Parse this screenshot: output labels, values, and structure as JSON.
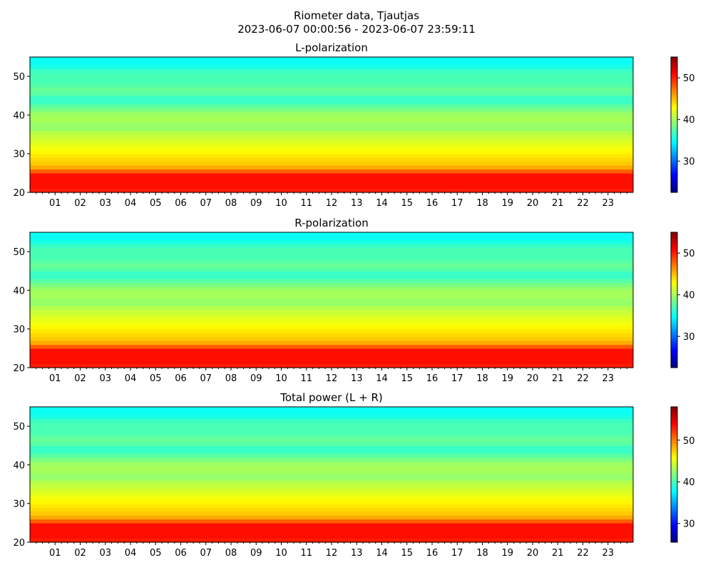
{
  "figure": {
    "title_line1": "Riometer data, Tjautjas",
    "title_line2": "2023-06-07 00:00:56 - 2023-06-07 23:59:11"
  },
  "colormap": {
    "name": "jet",
    "stops": [
      "#00007f",
      "#0000ff",
      "#007fff",
      "#00ffff",
      "#7fff7f",
      "#ffff00",
      "#ff7f00",
      "#ff0000",
      "#7f0000"
    ]
  },
  "chart_data": [
    {
      "type": "heatmap",
      "title": "L-polarization",
      "x_tick_labels": [
        "01",
        "02",
        "03",
        "04",
        "05",
        "06",
        "07",
        "08",
        "09",
        "10",
        "11",
        "12",
        "13",
        "14",
        "15",
        "16",
        "17",
        "18",
        "19",
        "20",
        "21",
        "22",
        "23"
      ],
      "x_range_hours": [
        0,
        24
      ],
      "ylim": [
        20,
        55
      ],
      "y_ticks": [
        20,
        30,
        40,
        50
      ],
      "colorbar": {
        "range": [
          22.5,
          55
        ],
        "ticks": [
          30,
          40,
          50
        ]
      },
      "row_profile": [
        {
          "y": 20,
          "v": 50
        },
        {
          "y": 21,
          "v": 50
        },
        {
          "y": 22,
          "v": 51
        },
        {
          "y": 23,
          "v": 50
        },
        {
          "y": 24,
          "v": 51
        },
        {
          "y": 25,
          "v": 50
        },
        {
          "y": 26,
          "v": 46
        },
        {
          "y": 27,
          "v": 45
        },
        {
          "y": 28,
          "v": 44
        },
        {
          "y": 29,
          "v": 44
        },
        {
          "y": 30,
          "v": 43
        },
        {
          "y": 31,
          "v": 43
        },
        {
          "y": 32,
          "v": 42
        },
        {
          "y": 33,
          "v": 42
        },
        {
          "y": 34,
          "v": 41
        },
        {
          "y": 35,
          "v": 41
        },
        {
          "y": 36,
          "v": 40
        },
        {
          "y": 37,
          "v": 39
        },
        {
          "y": 38,
          "v": 40
        },
        {
          "y": 39,
          "v": 40
        },
        {
          "y": 40,
          "v": 40
        },
        {
          "y": 41,
          "v": 39
        },
        {
          "y": 42,
          "v": 38
        },
        {
          "y": 43,
          "v": 37
        },
        {
          "y": 44,
          "v": 36
        },
        {
          "y": 45,
          "v": 37
        },
        {
          "y": 46,
          "v": 38
        },
        {
          "y": 47,
          "v": 38
        },
        {
          "y": 48,
          "v": 37
        },
        {
          "y": 49,
          "v": 37
        },
        {
          "y": 50,
          "v": 37
        },
        {
          "y": 51,
          "v": 37
        },
        {
          "y": 52,
          "v": 36
        },
        {
          "y": 53,
          "v": 35
        },
        {
          "y": 54,
          "v": 35
        },
        {
          "y": 55,
          "v": 35
        }
      ]
    },
    {
      "type": "heatmap",
      "title": "R-polarization",
      "x_tick_labels": [
        "01",
        "02",
        "03",
        "04",
        "05",
        "06",
        "07",
        "08",
        "09",
        "10",
        "11",
        "12",
        "13",
        "14",
        "15",
        "16",
        "17",
        "18",
        "19",
        "20",
        "21",
        "22",
        "23"
      ],
      "x_range_hours": [
        0,
        24
      ],
      "ylim": [
        20,
        55
      ],
      "y_ticks": [
        20,
        30,
        40,
        50
      ],
      "colorbar": {
        "range": [
          22.5,
          55
        ],
        "ticks": [
          30,
          40,
          50
        ]
      },
      "row_profile": [
        {
          "y": 20,
          "v": 50
        },
        {
          "y": 21,
          "v": 50
        },
        {
          "y": 22,
          "v": 51
        },
        {
          "y": 23,
          "v": 50
        },
        {
          "y": 24,
          "v": 51
        },
        {
          "y": 25,
          "v": 50
        },
        {
          "y": 26,
          "v": 46
        },
        {
          "y": 27,
          "v": 45
        },
        {
          "y": 28,
          "v": 44
        },
        {
          "y": 29,
          "v": 44
        },
        {
          "y": 30,
          "v": 43
        },
        {
          "y": 31,
          "v": 43
        },
        {
          "y": 32,
          "v": 42
        },
        {
          "y": 33,
          "v": 42
        },
        {
          "y": 34,
          "v": 41
        },
        {
          "y": 35,
          "v": 41
        },
        {
          "y": 36,
          "v": 40
        },
        {
          "y": 37,
          "v": 39
        },
        {
          "y": 38,
          "v": 40
        },
        {
          "y": 39,
          "v": 40
        },
        {
          "y": 40,
          "v": 40
        },
        {
          "y": 41,
          "v": 39
        },
        {
          "y": 42,
          "v": 38
        },
        {
          "y": 43,
          "v": 37
        },
        {
          "y": 44,
          "v": 36
        },
        {
          "y": 45,
          "v": 37
        },
        {
          "y": 46,
          "v": 38
        },
        {
          "y": 47,
          "v": 38
        },
        {
          "y": 48,
          "v": 37
        },
        {
          "y": 49,
          "v": 37
        },
        {
          "y": 50,
          "v": 37
        },
        {
          "y": 51,
          "v": 37
        },
        {
          "y": 52,
          "v": 36
        },
        {
          "y": 53,
          "v": 35
        },
        {
          "y": 54,
          "v": 35
        },
        {
          "y": 55,
          "v": 35
        }
      ]
    },
    {
      "type": "heatmap",
      "title": "Total power (L + R)",
      "x_tick_labels": [
        "01",
        "02",
        "03",
        "04",
        "05",
        "06",
        "07",
        "08",
        "09",
        "10",
        "11",
        "12",
        "13",
        "14",
        "15",
        "16",
        "17",
        "18",
        "19",
        "20",
        "21",
        "22",
        "23"
      ],
      "x_range_hours": [
        0,
        24
      ],
      "ylim": [
        20,
        55
      ],
      "y_ticks": [
        20,
        30,
        40,
        50
      ],
      "colorbar": {
        "range": [
          25.5,
          58
        ],
        "ticks": [
          30,
          40,
          50
        ]
      },
      "row_profile": [
        {
          "y": 20,
          "v": 53
        },
        {
          "y": 21,
          "v": 53
        },
        {
          "y": 22,
          "v": 54
        },
        {
          "y": 23,
          "v": 53
        },
        {
          "y": 24,
          "v": 54
        },
        {
          "y": 25,
          "v": 53
        },
        {
          "y": 26,
          "v": 49
        },
        {
          "y": 27,
          "v": 48
        },
        {
          "y": 28,
          "v": 47
        },
        {
          "y": 29,
          "v": 47
        },
        {
          "y": 30,
          "v": 46
        },
        {
          "y": 31,
          "v": 46
        },
        {
          "y": 32,
          "v": 45
        },
        {
          "y": 33,
          "v": 45
        },
        {
          "y": 34,
          "v": 44
        },
        {
          "y": 35,
          "v": 44
        },
        {
          "y": 36,
          "v": 43
        },
        {
          "y": 37,
          "v": 42
        },
        {
          "y": 38,
          "v": 43
        },
        {
          "y": 39,
          "v": 43
        },
        {
          "y": 40,
          "v": 43
        },
        {
          "y": 41,
          "v": 42
        },
        {
          "y": 42,
          "v": 41
        },
        {
          "y": 43,
          "v": 40
        },
        {
          "y": 44,
          "v": 39
        },
        {
          "y": 45,
          "v": 40
        },
        {
          "y": 46,
          "v": 41
        },
        {
          "y": 47,
          "v": 41
        },
        {
          "y": 48,
          "v": 40
        },
        {
          "y": 49,
          "v": 40
        },
        {
          "y": 50,
          "v": 40
        },
        {
          "y": 51,
          "v": 40
        },
        {
          "y": 52,
          "v": 39
        },
        {
          "y": 53,
          "v": 38
        },
        {
          "y": 54,
          "v": 38
        },
        {
          "y": 55,
          "v": 38
        }
      ]
    }
  ]
}
